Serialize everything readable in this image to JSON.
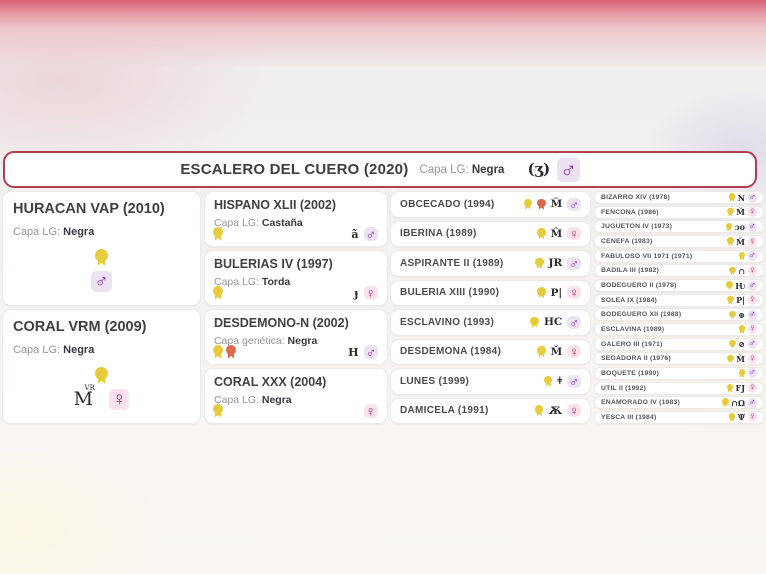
{
  "header": {
    "title": "ESCALERO DEL CUERO (2020)",
    "capa_label": "Capa LG:",
    "capa_value": "Negra",
    "brand_glyph": "(ʒ)",
    "sex": "male"
  },
  "icons": {
    "male_symbol": "♂",
    "female_symbol": "♀"
  },
  "colors": {
    "accent_red": "#b43c52",
    "male": "#8a2fae",
    "female": "#c52a68",
    "award_yellow": "#e6cb3c",
    "award_orange": "#dd6a4c"
  },
  "pedigree": {
    "gen1": [
      {
        "name": "HURACAN VAP (2010)",
        "capa_label": "Capa LG:",
        "capa_value": "Negra",
        "awards": [
          "yellow"
        ],
        "brand": "",
        "brand_sup": "",
        "sex": "male"
      },
      {
        "name": "CORAL VRM (2009)",
        "capa_label": "Capa LG:",
        "capa_value": "Negra",
        "awards": [
          "yellow"
        ],
        "brand": "M",
        "brand_sup": "VR",
        "sex": "female"
      }
    ],
    "gen2": [
      {
        "name": "HISPANO XLII (2002)",
        "capa_label": "Capa LG:",
        "capa_value": "Castaña",
        "awards": [
          "yellow"
        ],
        "brand": "ã",
        "sex": "male"
      },
      {
        "name": "BULERIAS IV (1997)",
        "capa_label": "Capa LG:",
        "capa_value": "Torda",
        "awards": [
          "yellow"
        ],
        "brand": "ɟ",
        "sex": "female"
      },
      {
        "name": "DESDEMONO-N (2002)",
        "capa_label": "Capa genética:",
        "capa_value": "Negra",
        "awards": [
          "yellow",
          "orange"
        ],
        "brand": "H",
        "sex": "male"
      },
      {
        "name": "CORAL XXX (2004)",
        "capa_label": "Capa LG:",
        "capa_value": "Negra",
        "awards": [
          "yellow"
        ],
        "brand": "",
        "sex": "female"
      }
    ],
    "gen3": [
      {
        "name": "OBCECADO (1994)",
        "awards": [
          "yellow",
          "orange"
        ],
        "brand": "M̂",
        "sex": "male"
      },
      {
        "name": "IBERINA (1989)",
        "awards": [
          "yellow"
        ],
        "brand": "M̂",
        "sex": "female"
      },
      {
        "name": "ASPIRANTE II (1989)",
        "awards": [
          "yellow"
        ],
        "brand": "JR",
        "sex": "male"
      },
      {
        "name": "BULERIA XIII (1990)",
        "awards": [
          "yellow"
        ],
        "brand": "P|",
        "sex": "female"
      },
      {
        "name": "ESCLAVINO (1993)",
        "awards": [
          "yellow"
        ],
        "brand": "HC",
        "sex": "male"
      },
      {
        "name": "DESDEMONA (1984)",
        "awards": [
          "yellow"
        ],
        "brand": "M̆",
        "sex": "female"
      },
      {
        "name": "LUNES (1999)",
        "awards": [
          "yellow"
        ],
        "brand": "ǂ",
        "sex": "male"
      },
      {
        "name": "DAMICELA (1991)",
        "awards": [
          "yellow"
        ],
        "brand": "Ѫ",
        "sex": "female"
      }
    ],
    "gen4": [
      {
        "name": "BIZARRO XIV (1978)",
        "awards": [
          "yellow"
        ],
        "brand": "N",
        "sex": "male"
      },
      {
        "name": "FENCONA (1986)",
        "awards": [
          "yellow"
        ],
        "brand": "M̌",
        "sex": "female"
      },
      {
        "name": "JUGUETON IV (1973)",
        "awards": [
          "yellow"
        ],
        "brand": "ɔo",
        "sex": "male"
      },
      {
        "name": "CENEFA (1983)",
        "awards": [
          "yellow"
        ],
        "brand": "M̌",
        "sex": "female"
      },
      {
        "name": "FABULOSO VII 1971 (1971)",
        "awards": [
          "yellow"
        ],
        "brand": "",
        "sex": "male"
      },
      {
        "name": "BADILA III (1982)",
        "awards": [
          "yellow"
        ],
        "brand": "∩",
        "sex": "female"
      },
      {
        "name": "BODEGUERO II (1978)",
        "awards": [
          "yellow"
        ],
        "brand": "Ƕ",
        "sex": "male"
      },
      {
        "name": "SOLEA IX (1984)",
        "awards": [
          "yellow"
        ],
        "brand": "P|",
        "sex": "female"
      },
      {
        "name": "BODEGUERO XII (1988)",
        "awards": [
          "yellow"
        ],
        "brand": "⊛",
        "sex": "male"
      },
      {
        "name": "ESCLAVINA (1989)",
        "awards": [
          "yellow"
        ],
        "brand": "",
        "sex": "female"
      },
      {
        "name": "GALERO III (1971)",
        "awards": [
          "yellow"
        ],
        "brand": "⊘",
        "sex": "male"
      },
      {
        "name": "SEGADORA II (1976)",
        "awards": [
          "yellow"
        ],
        "brand": "M̌",
        "sex": "female"
      },
      {
        "name": "BOQUETE (1990)",
        "awards": [
          "yellow"
        ],
        "brand": "",
        "sex": "male"
      },
      {
        "name": "UTIL II (1992)",
        "awards": [
          "yellow"
        ],
        "brand": "FJ",
        "sex": "female"
      },
      {
        "name": "ENAMORADO IV (1983)",
        "awards": [
          "yellow"
        ],
        "brand": "∩Ω",
        "sex": "male"
      },
      {
        "name": "YESCA III (1984)",
        "awards": [
          "yellow"
        ],
        "brand": "Ψ",
        "sex": "female"
      }
    ]
  }
}
